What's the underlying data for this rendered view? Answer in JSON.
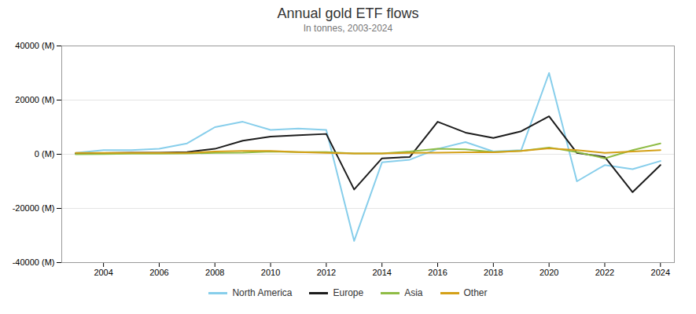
{
  "chart_data": {
    "type": "line",
    "title": "Annual gold ETF flows",
    "subtitle": "In tonnes, 2003-2024",
    "x": [
      2003,
      2004,
      2005,
      2006,
      2007,
      2008,
      2009,
      2010,
      2011,
      2012,
      2013,
      2014,
      2015,
      2016,
      2017,
      2018,
      2019,
      2020,
      2021,
      2022,
      2023,
      2024
    ],
    "series": [
      {
        "name": "North America",
        "color": "#87CEEB",
        "values": [
          500,
          1500,
          1500,
          2000,
          4000,
          10000,
          12000,
          9000,
          9500,
          9000,
          -32000,
          -3000,
          -2000,
          2000,
          4500,
          1000,
          1500,
          30000,
          -10000,
          -4000,
          -5500,
          -2500
        ]
      },
      {
        "name": "Europe",
        "color": "#1c1c1c",
        "values": [
          200,
          400,
          600,
          600,
          800,
          2000,
          5000,
          6500,
          7000,
          7500,
          -13000,
          -1500,
          -1000,
          12000,
          8000,
          6000,
          8500,
          14000,
          500,
          -1000,
          -14000,
          -4000
        ]
      },
      {
        "name": "Asia",
        "color": "#8fbc45",
        "values": [
          0,
          100,
          200,
          200,
          300,
          500,
          600,
          1000,
          800,
          800,
          300,
          300,
          1000,
          2000,
          1800,
          800,
          1200,
          2500,
          800,
          -1500,
          1500,
          4000
        ]
      },
      {
        "name": "Other",
        "color": "#d4a017",
        "values": [
          500,
          500,
          500,
          500,
          500,
          1000,
          1200,
          1200,
          800,
          500,
          300,
          300,
          500,
          600,
          700,
          700,
          1200,
          2200,
          1500,
          500,
          1000,
          1500
        ]
      }
    ],
    "xlim": [
      2002.5,
      2024.5
    ],
    "xticks": [
      2004,
      2006,
      2008,
      2010,
      2012,
      2014,
      2016,
      2018,
      2020,
      2022,
      2024
    ],
    "ylim": [
      -40000,
      40000
    ],
    "yticks": [
      {
        "value": -40000,
        "label": "-40000 (M)"
      },
      {
        "value": -20000,
        "label": "-20000 (M)"
      },
      {
        "value": 0,
        "label": "0 (M)"
      },
      {
        "value": 20000,
        "label": "20000 (M)"
      },
      {
        "value": 40000,
        "label": "40000 (M)"
      }
    ],
    "grid": true,
    "legend": "bottom"
  }
}
